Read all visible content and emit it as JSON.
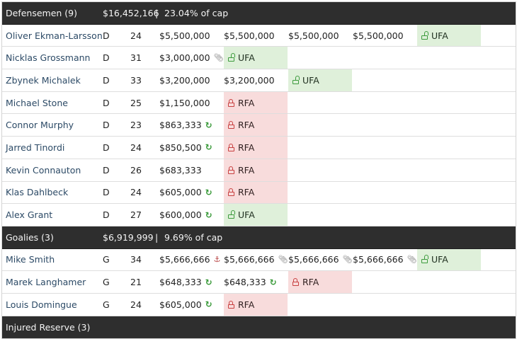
{
  "sections": {
    "defense": {
      "title": "Defensemen (9)",
      "sum": "$16,452,166",
      "separator": "|",
      "pct": "23.04% of cap"
    },
    "goalies": {
      "title": "Goalies (3)",
      "sum": "$6,919,999",
      "separator": "|",
      "pct": "9.69% of cap"
    },
    "ir": {
      "title": "Injured Reserve (3)"
    }
  },
  "defense_rows": [
    {
      "name": "Oliver Ekman-Larsson",
      "pos": "D",
      "age": "24",
      "y1": "$5,500,000",
      "y2": "$5,500,000",
      "y3": "$5,500,000",
      "y4": "$5,500,000",
      "y5": "UFA"
    },
    {
      "name": "Nicklas Grossmann",
      "pos": "D",
      "age": "31",
      "y1": "$3,000,000",
      "y2": "UFA"
    },
    {
      "name": "Zbynek Michalek",
      "pos": "D",
      "age": "33",
      "y1": "$3,200,000",
      "y2": "$3,200,000",
      "y3": "UFA"
    },
    {
      "name": "Michael Stone",
      "pos": "D",
      "age": "25",
      "y1": "$1,150,000",
      "y2": "RFA"
    },
    {
      "name": "Connor Murphy",
      "pos": "D",
      "age": "23",
      "y1": "$863,333",
      "y2": "RFA"
    },
    {
      "name": "Jarred Tinordi",
      "pos": "D",
      "age": "24",
      "y1": "$850,500",
      "y2": "RFA"
    },
    {
      "name": "Kevin Connauton",
      "pos": "D",
      "age": "26",
      "y1": "$683,333",
      "y2": "RFA"
    },
    {
      "name": "Klas Dahlbeck",
      "pos": "D",
      "age": "24",
      "y1": "$605,000",
      "y2": "RFA"
    },
    {
      "name": "Alex Grant",
      "pos": "D",
      "age": "27",
      "y1": "$600,000",
      "y2": "UFA"
    }
  ],
  "goalie_rows": [
    {
      "name": "Mike Smith",
      "pos": "G",
      "age": "34",
      "y1": "$5,666,666",
      "y2": "$5,666,666",
      "y3": "$5,666,666",
      "y4": "$5,666,666",
      "y5": "UFA"
    },
    {
      "name": "Marek Langhamer",
      "pos": "G",
      "age": "21",
      "y1": "$648,333",
      "y2": "$648,333",
      "y3": "RFA"
    },
    {
      "name": "Louis Domingue",
      "pos": "G",
      "age": "24",
      "y1": "$605,000",
      "y2": "RFA"
    }
  ],
  "icons": {
    "refresh": "refresh-icon",
    "paperclip": "paperclip-icon",
    "anchor": "anchor-icon",
    "lock_open": "lock-open-icon",
    "lock_closed": "lock-closed-icon"
  },
  "colors": {
    "header_bg": "#2e2e2e",
    "ufa_bg": "#dff0da",
    "rfa_bg": "#f8dcdc",
    "name_link": "#2c4a66",
    "refresh": "#3a9a3a",
    "lock_open": "#3d9b3d",
    "lock_closed": "#c84040"
  }
}
